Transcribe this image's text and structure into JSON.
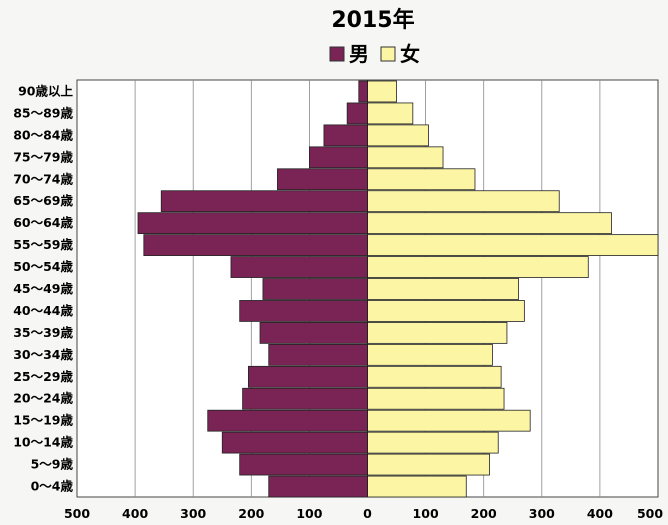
{
  "chart_data": {
    "type": "bar",
    "subtype": "population-pyramid",
    "title": "2015年",
    "categories": [
      "90歳以上",
      "85〜89歳",
      "80〜84歳",
      "75〜79歳",
      "70〜74歳",
      "65〜69歳",
      "60〜64歳",
      "55〜59歳",
      "50〜54歳",
      "45〜49歳",
      "40〜44歳",
      "35〜39歳",
      "30〜34歳",
      "25〜29歳",
      "20〜24歳",
      "15〜19歳",
      "10〜14歳",
      "5〜9歳",
      "0〜4歳"
    ],
    "series": [
      {
        "name": "男",
        "side": "left",
        "color": "#7a2455",
        "values": [
          15,
          35,
          75,
          100,
          155,
          355,
          395,
          385,
          235,
          180,
          220,
          185,
          170,
          205,
          215,
          275,
          250,
          220,
          170
        ]
      },
      {
        "name": "女",
        "side": "right",
        "color": "#fbf5a4",
        "values": [
          50,
          78,
          105,
          130,
          185,
          330,
          420,
          500,
          380,
          260,
          270,
          240,
          215,
          230,
          235,
          280,
          225,
          210,
          170
        ]
      }
    ],
    "xlim": [
      -500,
      500
    ],
    "xticks": [
      "500",
      "400",
      "300",
      "200",
      "100",
      "0",
      "100",
      "200",
      "300",
      "400",
      "500"
    ],
    "xtick_values": [
      -500,
      -400,
      -300,
      -200,
      -100,
      0,
      100,
      200,
      300,
      400,
      500
    ],
    "xlabel": "",
    "ylabel": "",
    "grid": true,
    "legend_position": "top-center"
  }
}
